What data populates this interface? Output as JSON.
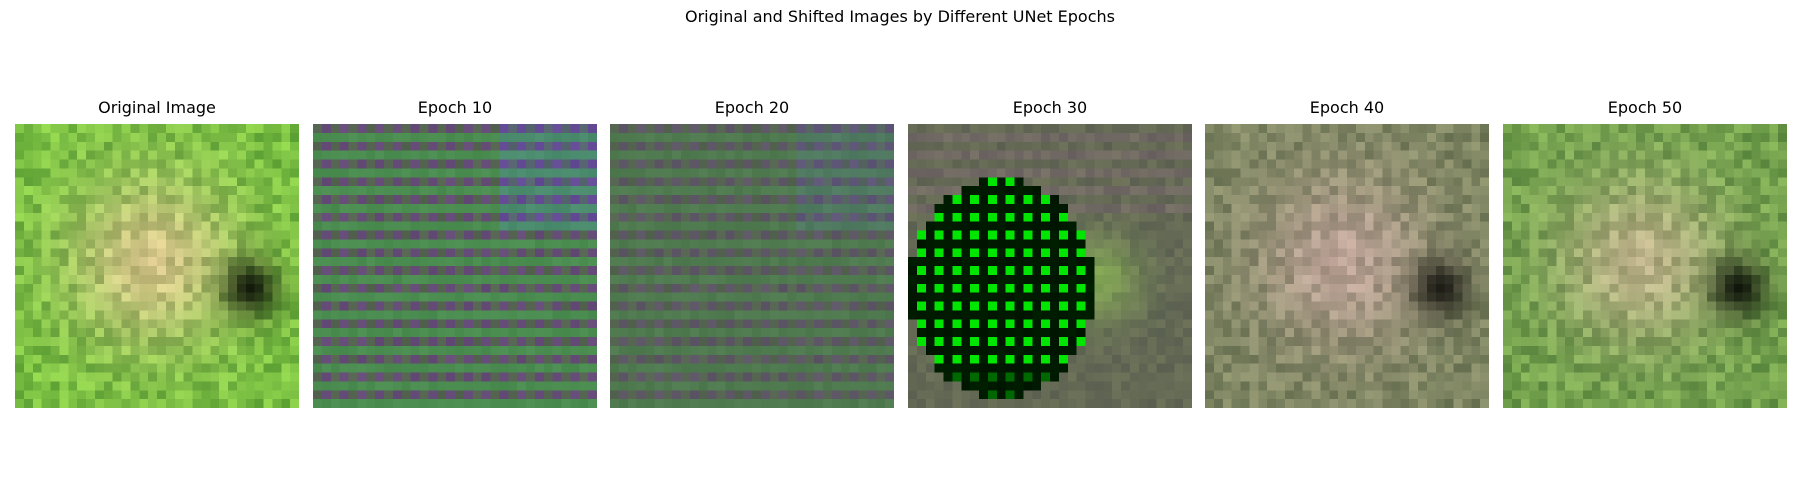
{
  "figure": {
    "title": "Original and Shifted Images by Different UNet Epochs"
  },
  "panels": [
    {
      "id": "original",
      "title": "Original Image",
      "style": "frog",
      "tint": "#7fbf3a"
    },
    {
      "id": "epoch10",
      "title": "Epoch 10",
      "style": "striped",
      "tint": "#4f6a4a"
    },
    {
      "id": "epoch20",
      "title": "Epoch 20",
      "style": "striped-faded",
      "tint": "#5a6a48"
    },
    {
      "id": "epoch30",
      "title": "Epoch 30",
      "style": "green-grid",
      "tint": "#00ff00"
    },
    {
      "id": "epoch40",
      "title": "Epoch 40",
      "style": "muted-frog",
      "tint": "#6e7658"
    },
    {
      "id": "epoch50",
      "title": "Epoch 50",
      "style": "frog-soft",
      "tint": "#7ea448"
    }
  ]
}
